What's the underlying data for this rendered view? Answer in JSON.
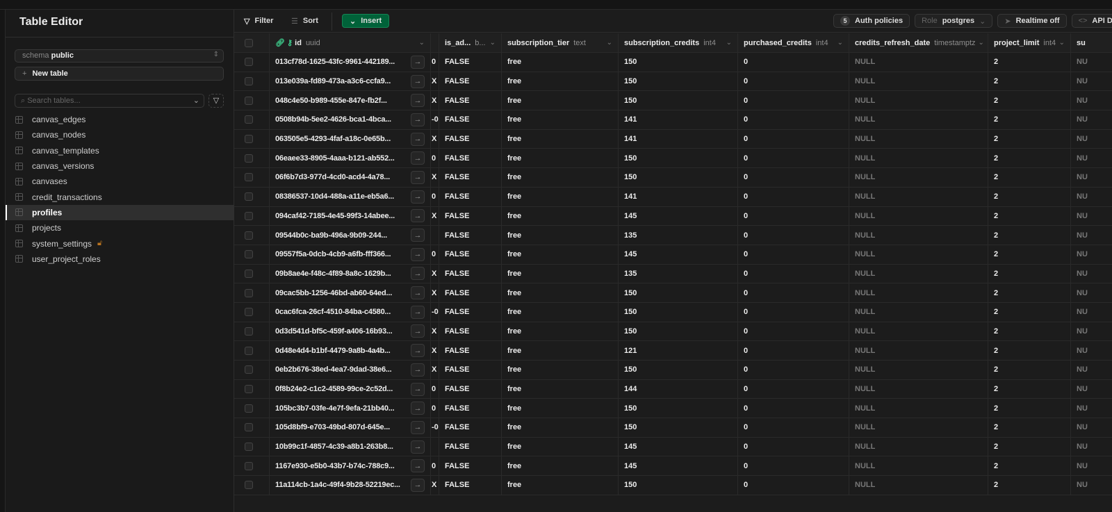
{
  "sidebar": {
    "title": "Table Editor",
    "schema_label": "schema",
    "schema_value": "public",
    "new_table": "New table",
    "search_placeholder": "Search tables...",
    "tables": [
      "canvas_edges",
      "canvas_nodes",
      "canvas_templates",
      "canvas_versions",
      "canvases",
      "credit_transactions",
      "profiles",
      "projects",
      "system_settings",
      "user_project_roles"
    ],
    "active_table": "profiles",
    "locked_table": "system_settings"
  },
  "toolbar": {
    "filter": "Filter",
    "sort": "Sort",
    "insert": "Insert",
    "auth_count": "5",
    "auth_policies": "Auth policies",
    "role_label": "Role",
    "role_value": "postgres",
    "realtime": "Realtime off",
    "api_docs": "API Do"
  },
  "columns": [
    {
      "name": "id",
      "type": "uuid"
    },
    {
      "name": "",
      "type": ""
    },
    {
      "name": "is_ad...",
      "type": "b..."
    },
    {
      "name": "subscription_tier",
      "type": "text"
    },
    {
      "name": "subscription_credits",
      "type": "int4"
    },
    {
      "name": "purchased_credits",
      "type": "int4"
    },
    {
      "name": "credits_refresh_date",
      "type": "timestamptz"
    },
    {
      "name": "project_limit",
      "type": "int4"
    },
    {
      "name": "su",
      "type": ""
    }
  ],
  "rows": [
    [
      "013cf78d-1625-43fc-9961-442189...",
      "0",
      "FALSE",
      "free",
      "150",
      "0",
      "NULL",
      "2",
      "NU"
    ],
    [
      "013e039a-fd89-473a-a3c6-ccfa9...",
      "X",
      "FALSE",
      "free",
      "150",
      "0",
      "NULL",
      "2",
      "NU"
    ],
    [
      "048c4e50-b989-455e-847e-fb2f...",
      "X",
      "FALSE",
      "free",
      "150",
      "0",
      "NULL",
      "2",
      "NU"
    ],
    [
      "0508b94b-5ee2-4626-bca1-4bca...",
      "-0",
      "FALSE",
      "free",
      "141",
      "0",
      "NULL",
      "2",
      "NU"
    ],
    [
      "063505e5-4293-4faf-a18c-0e65b...",
      "X",
      "FALSE",
      "free",
      "141",
      "0",
      "NULL",
      "2",
      "NU"
    ],
    [
      "06eaee33-8905-4aaa-b121-ab552...",
      "0",
      "FALSE",
      "free",
      "150",
      "0",
      "NULL",
      "2",
      "NU"
    ],
    [
      "06f6b7d3-977d-4cd0-acd4-4a78...",
      "X",
      "FALSE",
      "free",
      "150",
      "0",
      "NULL",
      "2",
      "NU"
    ],
    [
      "08386537-10d4-488a-a11e-eb5a6...",
      "0",
      "FALSE",
      "free",
      "141",
      "0",
      "NULL",
      "2",
      "NU"
    ],
    [
      "094caf42-7185-4e45-99f3-14abee...",
      "X",
      "FALSE",
      "free",
      "145",
      "0",
      "NULL",
      "2",
      "NU"
    ],
    [
      "09544b0c-ba9b-496a-9b09-244...",
      "",
      "FALSE",
      "free",
      "135",
      "0",
      "NULL",
      "2",
      "NU"
    ],
    [
      "09557f5a-0dcb-4cb9-a6fb-fff366...",
      "0",
      "FALSE",
      "free",
      "145",
      "0",
      "NULL",
      "2",
      "NU"
    ],
    [
      "09b8ae4e-f48c-4f89-8a8c-1629b...",
      "X",
      "FALSE",
      "free",
      "135",
      "0",
      "NULL",
      "2",
      "NU"
    ],
    [
      "09cac5bb-1256-46bd-ab60-64ed...",
      "X",
      "FALSE",
      "free",
      "150",
      "0",
      "NULL",
      "2",
      "NU"
    ],
    [
      "0cac6fca-26cf-4510-84ba-c4580...",
      "-0",
      "FALSE",
      "free",
      "150",
      "0",
      "NULL",
      "2",
      "NU"
    ],
    [
      "0d3d541d-bf5c-459f-a406-16b93...",
      "X",
      "FALSE",
      "free",
      "150",
      "0",
      "NULL",
      "2",
      "NU"
    ],
    [
      "0d48e4d4-b1bf-4479-9a8b-4a4b...",
      "X",
      "FALSE",
      "free",
      "121",
      "0",
      "NULL",
      "2",
      "NU"
    ],
    [
      "0eb2b676-38ed-4ea7-9dad-38e6...",
      "X",
      "FALSE",
      "free",
      "150",
      "0",
      "NULL",
      "2",
      "NU"
    ],
    [
      "0f8b24e2-c1c2-4589-99ce-2c52d...",
      "0",
      "FALSE",
      "free",
      "144",
      "0",
      "NULL",
      "2",
      "NU"
    ],
    [
      "105bc3b7-03fe-4e7f-9efa-21bb40...",
      "0",
      "FALSE",
      "free",
      "150",
      "0",
      "NULL",
      "2",
      "NU"
    ],
    [
      "105d8bf9-e703-49bd-807d-645e...",
      "-0",
      "FALSE",
      "free",
      "150",
      "0",
      "NULL",
      "2",
      "NU"
    ],
    [
      "10b99c1f-4857-4c39-a8b1-263b8...",
      "",
      "FALSE",
      "free",
      "145",
      "0",
      "NULL",
      "2",
      "NU"
    ],
    [
      "1167e930-e5b0-43b7-b74c-788c9...",
      "0",
      "FALSE",
      "free",
      "145",
      "0",
      "NULL",
      "2",
      "NU"
    ],
    [
      "11a114cb-1a4c-49f4-9b28-52219ec...",
      "X",
      "FALSE",
      "free",
      "150",
      "0",
      "NULL",
      "2",
      "NU"
    ]
  ],
  "colors": {
    "accent": "#3ecf8e",
    "insert_bg": "#006239",
    "lock": "#b8731f"
  }
}
